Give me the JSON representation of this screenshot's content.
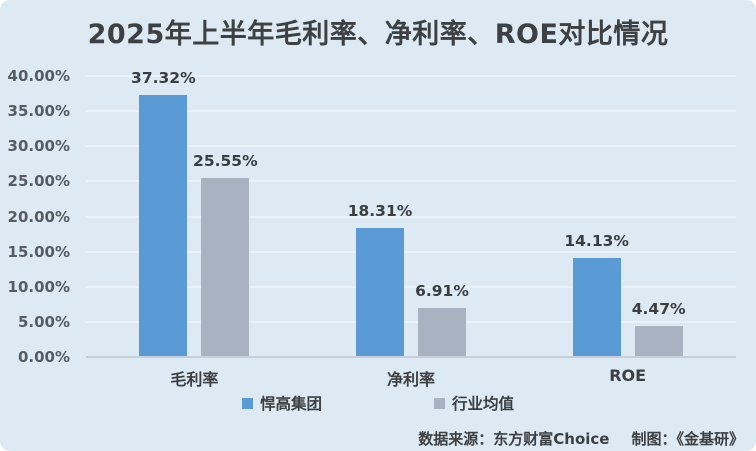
{
  "title": "2025年上半年毛利率、净利率、ROE对比情况",
  "chart_data": {
    "type": "bar",
    "title": "2025年上半年毛利率、净利率、ROE对比情况",
    "categories": [
      "毛利率",
      "净利率",
      "ROE"
    ],
    "series": [
      {
        "name": "悍高集团",
        "color": "#5b9bd5",
        "values": [
          37.32,
          18.31,
          14.13
        ],
        "labels": [
          "37.32%",
          "18.31%",
          "14.13%"
        ]
      },
      {
        "name": "行业均值",
        "color": "#a8b2c1",
        "values": [
          25.55,
          6.91,
          4.47
        ],
        "labels": [
          "25.55%",
          "6.91%",
          "4.47%"
        ]
      }
    ],
    "xlabel": "",
    "ylabel": "",
    "ylim": [
      0,
      40
    ],
    "ytick_step": 5,
    "ytick_labels": [
      "0.00%",
      "5.00%",
      "10.00%",
      "15.00%",
      "20.00%",
      "25.00%",
      "30.00%",
      "35.00%",
      "40.00%"
    ],
    "grid": true,
    "legend_position": "bottom"
  },
  "legend": {
    "items": [
      {
        "label": "悍高集团",
        "color": "#5b9bd5"
      },
      {
        "label": "行业均值",
        "color": "#a8b2c1"
      }
    ]
  },
  "footer": {
    "source_label": "数据来源：东方财富Choice",
    "credit_label": "制图：《金基研》"
  },
  "colors": {
    "background": "#dde9f3",
    "gridline": "#e9f1f9",
    "axis_line": "#c6cfd9",
    "title_text": "#3e4144",
    "axis_text": "#575c63",
    "value_text": "#3b3e41",
    "category_text": "#3d4043"
  }
}
